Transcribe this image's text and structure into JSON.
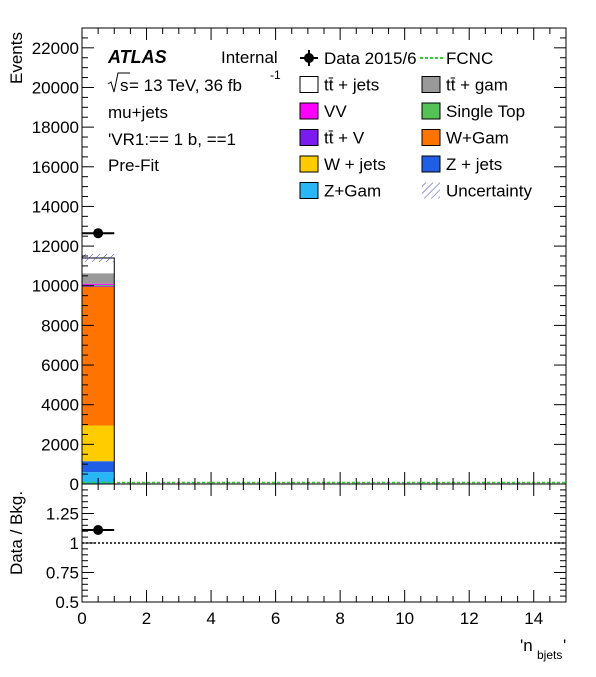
{
  "chart_data": {
    "type": "bar",
    "stacked": true,
    "x_label": "'n_bjets'",
    "x_label_main": "'n",
    "x_label_sub": "bjets",
    "x_label_tail": "'",
    "xlim": [
      0,
      15
    ],
    "x_ticks": [
      "0",
      "2",
      "4",
      "6",
      "8",
      "10",
      "12",
      "14"
    ],
    "main_panel": {
      "ylabel": "Events",
      "ylim": [
        0,
        23000
      ],
      "y_ticks": [
        "0",
        "2000",
        "4000",
        "6000",
        "8000",
        "10000",
        "12000",
        "14000",
        "16000",
        "18000",
        "20000",
        "22000"
      ],
      "bin": [
        0,
        1
      ],
      "stack": [
        {
          "name": "Z+Gam",
          "color": "#29b6f6",
          "value": 600
        },
        {
          "name": "Z + jets",
          "color": "#1f5fe6",
          "value": 550
        },
        {
          "name": "W + jets",
          "color": "#ffcc00",
          "value": 1800
        },
        {
          "name": "W+Gam",
          "color": "#ff7300",
          "value": 7000
        },
        {
          "name": "tt̄ + V",
          "color": "#7a1cf0",
          "value": 40
        },
        {
          "name": "Single Top",
          "color": "#55c255",
          "value": 50
        },
        {
          "name": "VV",
          "color": "#ff00ff",
          "value": 60
        },
        {
          "name": "tt̄ +  gam",
          "color": "#999999",
          "value": 530
        },
        {
          "name": "tt̄ + jets",
          "color": "#ffffff",
          "value": 770
        }
      ],
      "total": 11400,
      "uncertainty": 200,
      "data": {
        "name": "Data 2015/6",
        "x": 0.5,
        "y": 12650
      }
    },
    "ratio_panel": {
      "ylabel": "Data / Bkg.",
      "ylim": [
        0.5,
        1.5
      ],
      "y_ticks": [
        "0.5",
        "0.75",
        "1",
        "1.25"
      ],
      "points": [
        {
          "x": 0.5,
          "y": 1.11
        }
      ],
      "reference": 1
    },
    "legend": [
      {
        "name": "Data 2015/6",
        "style": "marker"
      },
      {
        "name": "FCNC",
        "style": "dashed-line",
        "color": "#33cc33"
      },
      {
        "name": "tt̄ + jets",
        "style": "box",
        "color": "#ffffff"
      },
      {
        "name": "tt̄ +  gam",
        "style": "box",
        "color": "#999999"
      },
      {
        "name": "VV",
        "style": "box",
        "color": "#ff00ff"
      },
      {
        "name": "Single Top",
        "style": "box",
        "color": "#55c255"
      },
      {
        "name": "tt̄ + V",
        "style": "box",
        "color": "#7a1cf0"
      },
      {
        "name": "W+Gam",
        "style": "box",
        "color": "#ff7300"
      },
      {
        "name": "W + jets",
        "style": "box",
        "color": "#ffcc00"
      },
      {
        "name": "Z + jets",
        "style": "box",
        "color": "#1f5fe6"
      },
      {
        "name": "Z+Gam",
        "style": "box",
        "color": "#29b6f6"
      },
      {
        "name": "Uncertainty",
        "style": "hatch",
        "color": "#3b3bd6"
      }
    ],
    "annotations": {
      "atlas": "ATLAS",
      "atlas_status": "Internal",
      "energy_prefix": "s",
      "energy_text": " = 13 TeV, 36 fb",
      "energy_sup": "-1",
      "channel": "mu+jets",
      "region": "'VR1:== 1 b, ==1",
      "fit_state": "Pre-Fit"
    }
  }
}
